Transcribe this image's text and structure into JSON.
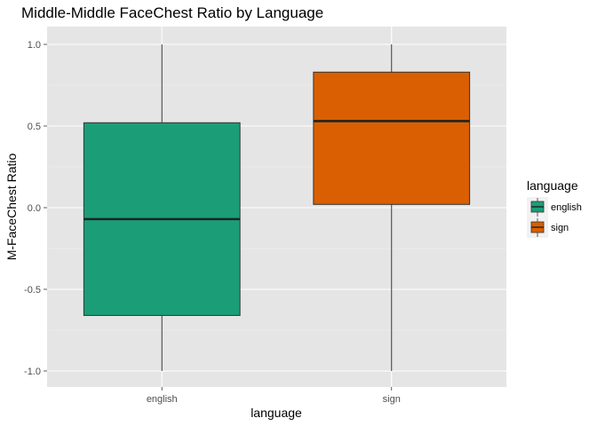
{
  "chart_data": {
    "type": "boxplot",
    "title": "Middle-Middle FaceChest Ratio by Language",
    "xlabel": "language",
    "ylabel": "M-FaceChest Ratio",
    "ylim": [
      -1.1,
      1.1
    ],
    "y_ticks": [
      1.0,
      0.5,
      0.0,
      -0.5,
      -1.0
    ],
    "y_tick_labels": [
      "1.0",
      "0.5",
      "0.0",
      "-0.5",
      "-1.0"
    ],
    "categories": [
      "english",
      "sign"
    ],
    "boxes": [
      {
        "category": "english",
        "min": -1.0,
        "q1": -0.66,
        "median": -0.07,
        "q3": 0.52,
        "max": 1.0,
        "color": "#1b9e77"
      },
      {
        "category": "sign",
        "min": -1.0,
        "q1": 0.02,
        "median": 0.53,
        "q3": 0.83,
        "max": 1.0,
        "color": "#d95f02"
      }
    ],
    "grid": true,
    "panel_background": "#e5e5e5",
    "legend": {
      "title": "language",
      "placement": "right",
      "items": [
        {
          "label": "english",
          "color": "#1b9e77"
        },
        {
          "label": "sign",
          "color": "#d95f02"
        }
      ]
    }
  }
}
